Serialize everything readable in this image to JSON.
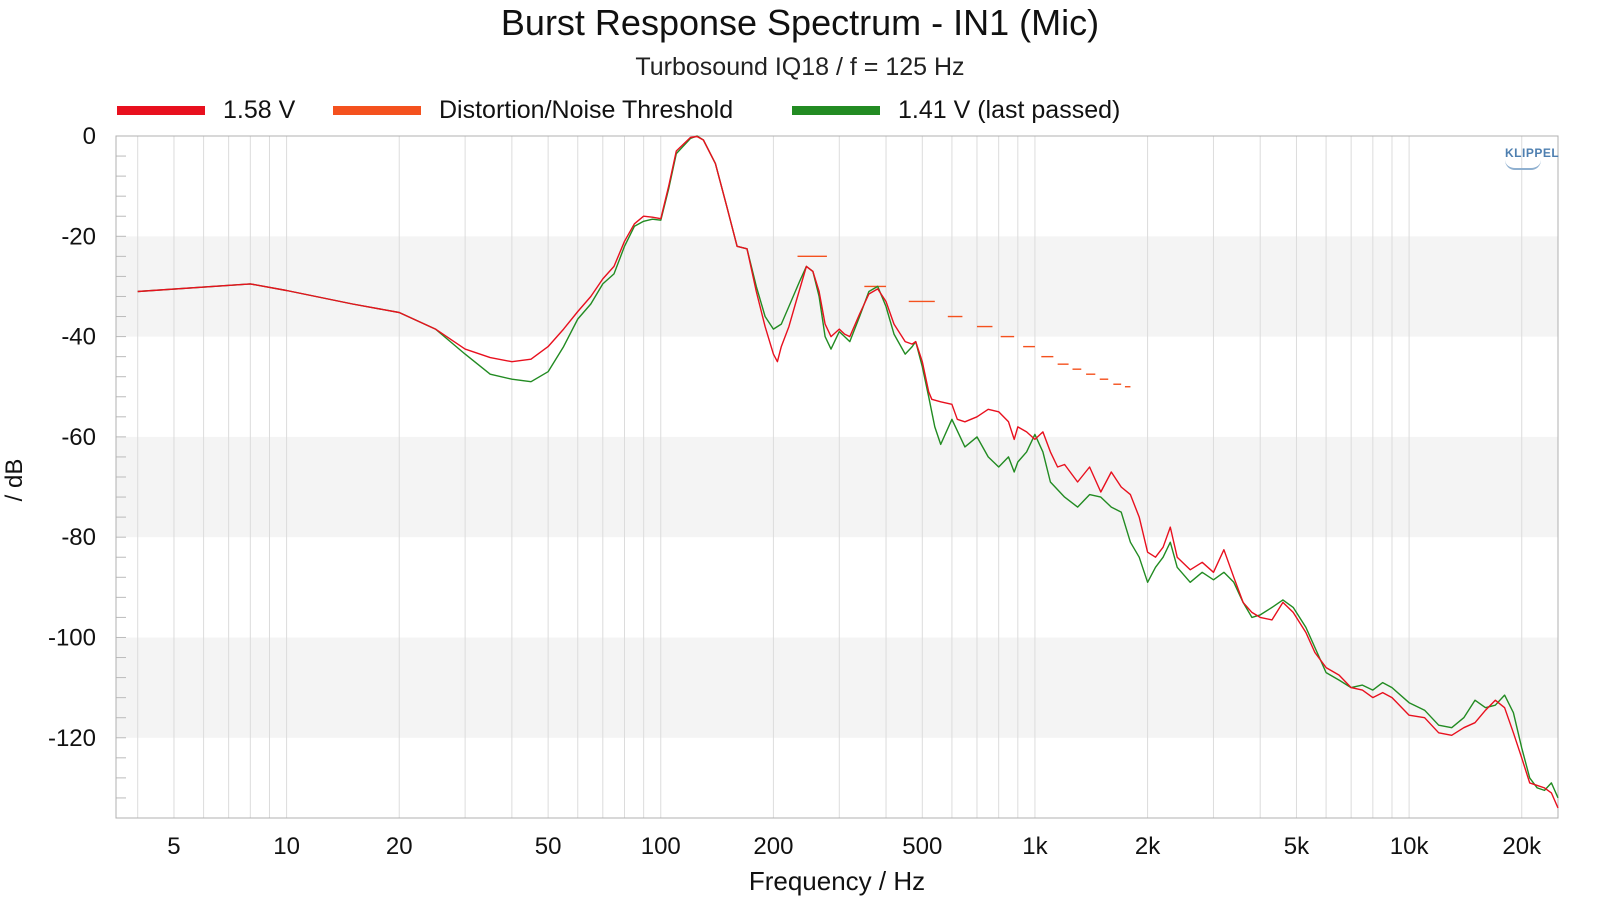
{
  "chart_data": {
    "type": "line",
    "title": "Burst Response Spectrum - IN1 (Mic)",
    "subtitle": "Turbosound IQ18 / f = 125 Hz",
    "xlabel": "Frequency / Hz",
    "ylabel": "/ dB",
    "xscale": "log",
    "xlim": [
      3.5,
      25000
    ],
    "ylim": [
      -136,
      0
    ],
    "grid": true,
    "legend_position": "top",
    "watermark": "KLIPPEL",
    "x_ticks": [
      {
        "value": 5,
        "label": "5"
      },
      {
        "value": 10,
        "label": "10"
      },
      {
        "value": 20,
        "label": "20"
      },
      {
        "value": 50,
        "label": "50"
      },
      {
        "value": 100,
        "label": "100"
      },
      {
        "value": 200,
        "label": "200"
      },
      {
        "value": 500,
        "label": "500"
      },
      {
        "value": 1000,
        "label": "1k"
      },
      {
        "value": 2000,
        "label": "2k"
      },
      {
        "value": 5000,
        "label": "5k"
      },
      {
        "value": 10000,
        "label": "10k"
      },
      {
        "value": 20000,
        "label": "20k"
      }
    ],
    "y_ticks": [
      {
        "value": 0,
        "label": "0"
      },
      {
        "value": -20,
        "label": "-20"
      },
      {
        "value": -40,
        "label": "-40"
      },
      {
        "value": -60,
        "label": "-60"
      },
      {
        "value": -80,
        "label": "-80"
      },
      {
        "value": -100,
        "label": "-100"
      },
      {
        "value": -120,
        "label": "-120"
      }
    ],
    "series": [
      {
        "name": "1.58 V",
        "color": "#e8101e",
        "points": [
          [
            4,
            -31
          ],
          [
            8,
            -29.5
          ],
          [
            10,
            -30.8
          ],
          [
            15,
            -33.5
          ],
          [
            20,
            -35.2
          ],
          [
            25,
            -38.5
          ],
          [
            30,
            -42.5
          ],
          [
            35,
            -44.2
          ],
          [
            40,
            -45
          ],
          [
            45,
            -44.5
          ],
          [
            50,
            -42
          ],
          [
            55,
            -38.5
          ],
          [
            60,
            -35
          ],
          [
            65,
            -32
          ],
          [
            70,
            -28.5
          ],
          [
            75,
            -26
          ],
          [
            80,
            -21
          ],
          [
            85,
            -17.5
          ],
          [
            90,
            -16
          ],
          [
            95,
            -16.2
          ],
          [
            100,
            -16.5
          ],
          [
            105,
            -10
          ],
          [
            110,
            -3
          ],
          [
            120,
            -0.3
          ],
          [
            125,
            -0.1
          ],
          [
            130,
            -0.8
          ],
          [
            140,
            -5.5
          ],
          [
            150,
            -14
          ],
          [
            160,
            -22
          ],
          [
            170,
            -22.5
          ],
          [
            180,
            -31
          ],
          [
            190,
            -38
          ],
          [
            200,
            -43.5
          ],
          [
            205,
            -45
          ],
          [
            210,
            -42
          ],
          [
            220,
            -38
          ],
          [
            230,
            -33
          ],
          [
            245,
            -26
          ],
          [
            255,
            -27
          ],
          [
            265,
            -31
          ],
          [
            275,
            -37.5
          ],
          [
            285,
            -40
          ],
          [
            300,
            -38.5
          ],
          [
            310,
            -39.5
          ],
          [
            320,
            -40
          ],
          [
            340,
            -35.5
          ],
          [
            360,
            -31.5
          ],
          [
            380,
            -30.5
          ],
          [
            400,
            -33
          ],
          [
            420,
            -37.5
          ],
          [
            450,
            -41
          ],
          [
            470,
            -41.5
          ],
          [
            480,
            -41
          ],
          [
            500,
            -45
          ],
          [
            520,
            -51
          ],
          [
            530,
            -52.5
          ],
          [
            560,
            -53
          ],
          [
            600,
            -53.5
          ],
          [
            620,
            -56.5
          ],
          [
            650,
            -57
          ],
          [
            700,
            -56
          ],
          [
            750,
            -54.5
          ],
          [
            800,
            -55
          ],
          [
            850,
            -57
          ],
          [
            880,
            -60.5
          ],
          [
            900,
            -58
          ],
          [
            950,
            -59
          ],
          [
            1000,
            -60.5
          ],
          [
            1050,
            -59
          ],
          [
            1100,
            -63
          ],
          [
            1150,
            -66
          ],
          [
            1200,
            -65.5
          ],
          [
            1300,
            -69
          ],
          [
            1400,
            -66
          ],
          [
            1500,
            -71
          ],
          [
            1600,
            -67
          ],
          [
            1700,
            -70
          ],
          [
            1800,
            -71.5
          ],
          [
            1900,
            -76
          ],
          [
            2000,
            -83
          ],
          [
            2100,
            -84
          ],
          [
            2200,
            -82
          ],
          [
            2300,
            -78
          ],
          [
            2400,
            -84
          ],
          [
            2600,
            -86.5
          ],
          [
            2800,
            -85
          ],
          [
            3000,
            -87
          ],
          [
            3200,
            -82.5
          ],
          [
            3400,
            -88
          ],
          [
            3600,
            -93
          ],
          [
            3800,
            -95
          ],
          [
            4000,
            -96
          ],
          [
            4300,
            -96.5
          ],
          [
            4600,
            -93
          ],
          [
            4900,
            -95
          ],
          [
            5300,
            -99
          ],
          [
            5600,
            -103
          ],
          [
            6000,
            -106
          ],
          [
            6500,
            -107.5
          ],
          [
            7000,
            -110
          ],
          [
            7500,
            -110.5
          ],
          [
            8000,
            -112
          ],
          [
            8500,
            -111
          ],
          [
            9000,
            -112
          ],
          [
            10000,
            -115.5
          ],
          [
            11000,
            -116
          ],
          [
            12000,
            -119
          ],
          [
            13000,
            -119.5
          ],
          [
            14000,
            -118
          ],
          [
            15000,
            -117
          ],
          [
            16000,
            -114.5
          ],
          [
            17000,
            -112.5
          ],
          [
            18000,
            -114
          ],
          [
            19000,
            -119
          ],
          [
            20000,
            -124
          ],
          [
            21000,
            -129
          ],
          [
            22000,
            -129.5
          ],
          [
            23000,
            -130
          ],
          [
            24000,
            -131
          ],
          [
            25000,
            -134
          ]
        ]
      },
      {
        "name": "Distortion/Noise Threshold",
        "color": "#f4511e",
        "segments": [
          [
            [
              232,
              -24
            ],
            [
              278,
              -24
            ]
          ],
          [
            [
              350,
              -30
            ],
            [
              400,
              -30
            ]
          ],
          [
            [
              460,
              -33
            ],
            [
              540,
              -33
            ]
          ],
          [
            [
              585,
              -36
            ],
            [
              640,
              -36
            ]
          ],
          [
            [
              700,
              -38
            ],
            [
              770,
              -38
            ]
          ],
          [
            [
              810,
              -40
            ],
            [
              880,
              -40
            ]
          ],
          [
            [
              930,
              -42
            ],
            [
              1000,
              -42
            ]
          ],
          [
            [
              1040,
              -44
            ],
            [
              1120,
              -44
            ]
          ],
          [
            [
              1150,
              -45.5
            ],
            [
              1230,
              -45.5
            ]
          ],
          [
            [
              1260,
              -46.5
            ],
            [
              1330,
              -46.5
            ]
          ],
          [
            [
              1370,
              -47.5
            ],
            [
              1450,
              -47.5
            ]
          ],
          [
            [
              1490,
              -48.5
            ],
            [
              1570,
              -48.5
            ]
          ],
          [
            [
              1620,
              -49.5
            ],
            [
              1700,
              -49.5
            ]
          ],
          [
            [
              1740,
              -50
            ],
            [
              1800,
              -50
            ]
          ]
        ]
      },
      {
        "name": "1.41 V (last passed)",
        "color": "#228b22",
        "points": [
          [
            4,
            -31
          ],
          [
            8,
            -29.5
          ],
          [
            10,
            -30.8
          ],
          [
            15,
            -33.5
          ],
          [
            20,
            -35.2
          ],
          [
            25,
            -38.5
          ],
          [
            30,
            -43.5
          ],
          [
            35,
            -47.5
          ],
          [
            40,
            -48.5
          ],
          [
            45,
            -49
          ],
          [
            50,
            -47
          ],
          [
            55,
            -42
          ],
          [
            60,
            -36.5
          ],
          [
            65,
            -33.5
          ],
          [
            70,
            -29.5
          ],
          [
            75,
            -27.5
          ],
          [
            80,
            -22
          ],
          [
            85,
            -18
          ],
          [
            90,
            -17
          ],
          [
            95,
            -16.6
          ],
          [
            100,
            -16.8
          ],
          [
            105,
            -10.5
          ],
          [
            110,
            -3.5
          ],
          [
            120,
            -0.5
          ],
          [
            125,
            0
          ],
          [
            130,
            -0.8
          ],
          [
            140,
            -5.5
          ],
          [
            150,
            -14
          ],
          [
            160,
            -22
          ],
          [
            170,
            -22.5
          ],
          [
            180,
            -30
          ],
          [
            190,
            -36
          ],
          [
            200,
            -38.5
          ],
          [
            210,
            -37.5
          ],
          [
            220,
            -34
          ],
          [
            235,
            -29
          ],
          [
            245,
            -26
          ],
          [
            255,
            -27
          ],
          [
            265,
            -32
          ],
          [
            275,
            -40
          ],
          [
            285,
            -42.5
          ],
          [
            300,
            -39
          ],
          [
            310,
            -40
          ],
          [
            320,
            -41
          ],
          [
            340,
            -36
          ],
          [
            360,
            -31
          ],
          [
            380,
            -30
          ],
          [
            400,
            -34
          ],
          [
            420,
            -39.5
          ],
          [
            450,
            -43.5
          ],
          [
            470,
            -42
          ],
          [
            480,
            -41
          ],
          [
            500,
            -46
          ],
          [
            520,
            -52
          ],
          [
            540,
            -58
          ],
          [
            560,
            -61.5
          ],
          [
            600,
            -56.5
          ],
          [
            650,
            -62
          ],
          [
            700,
            -60
          ],
          [
            750,
            -64
          ],
          [
            800,
            -66
          ],
          [
            850,
            -64
          ],
          [
            880,
            -67
          ],
          [
            900,
            -65
          ],
          [
            950,
            -63
          ],
          [
            1000,
            -59.5
          ],
          [
            1050,
            -63
          ],
          [
            1100,
            -69
          ],
          [
            1200,
            -72
          ],
          [
            1300,
            -74
          ],
          [
            1400,
            -71.5
          ],
          [
            1500,
            -72
          ],
          [
            1600,
            -74
          ],
          [
            1700,
            -75
          ],
          [
            1800,
            -81
          ],
          [
            1900,
            -84
          ],
          [
            2000,
            -89
          ],
          [
            2100,
            -86
          ],
          [
            2200,
            -84
          ],
          [
            2300,
            -81
          ],
          [
            2400,
            -86
          ],
          [
            2600,
            -89
          ],
          [
            2800,
            -87
          ],
          [
            3000,
            -88.5
          ],
          [
            3200,
            -87
          ],
          [
            3400,
            -89
          ],
          [
            3600,
            -93
          ],
          [
            3800,
            -96
          ],
          [
            4000,
            -95.5
          ],
          [
            4300,
            -94
          ],
          [
            4600,
            -92.5
          ],
          [
            4900,
            -94
          ],
          [
            5300,
            -98
          ],
          [
            5600,
            -102
          ],
          [
            6000,
            -107
          ],
          [
            6500,
            -108.5
          ],
          [
            7000,
            -110
          ],
          [
            7500,
            -109.5
          ],
          [
            8000,
            -110.5
          ],
          [
            8500,
            -109
          ],
          [
            9000,
            -110
          ],
          [
            10000,
            -113
          ],
          [
            11000,
            -114.5
          ],
          [
            12000,
            -117.5
          ],
          [
            13000,
            -118
          ],
          [
            14000,
            -116
          ],
          [
            15000,
            -112.5
          ],
          [
            16000,
            -114
          ],
          [
            17000,
            -113.5
          ],
          [
            18000,
            -111.5
          ],
          [
            19000,
            -115
          ],
          [
            20000,
            -122
          ],
          [
            21000,
            -128
          ],
          [
            22000,
            -130
          ],
          [
            23000,
            -130.5
          ],
          [
            24000,
            -129
          ],
          [
            25000,
            -132
          ]
        ]
      }
    ]
  }
}
